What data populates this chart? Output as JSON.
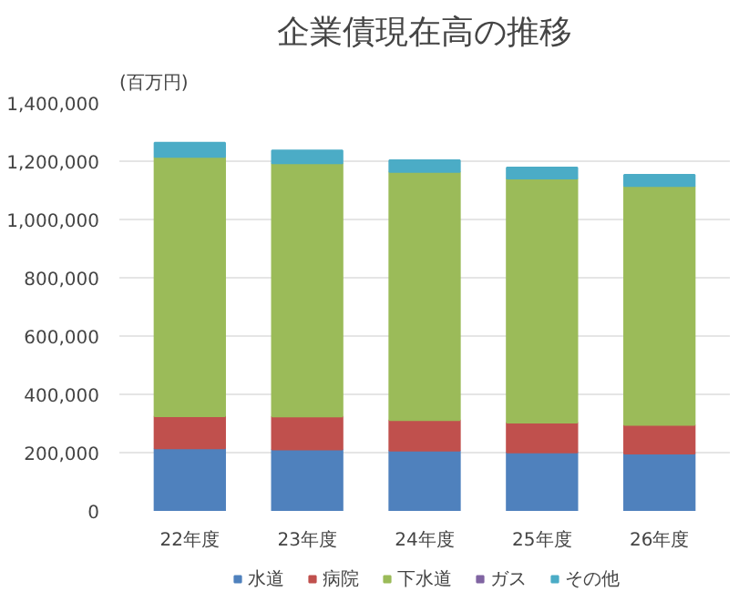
{
  "chart_data": {
    "type": "bar",
    "stacked": true,
    "title": "企業債現在高の推移",
    "ylabel": "(百万円)",
    "categories": [
      "22年度",
      "23年度",
      "24年度",
      "25年度",
      "26年度"
    ],
    "series": [
      {
        "name": "水道",
        "color": "#4f81bd",
        "values": [
          215000,
          211000,
          207000,
          201000,
          197000
        ]
      },
      {
        "name": "病院",
        "color": "#c0504d",
        "values": [
          110000,
          113000,
          105000,
          102000,
          98000
        ]
      },
      {
        "name": "下水道",
        "color": "#9bbb59",
        "values": [
          890000,
          869000,
          851000,
          838000,
          820000
        ]
      },
      {
        "name": "ガス",
        "color": "#8064a2",
        "values": [
          null,
          null,
          null,
          null,
          null
        ]
      },
      {
        "name": "その他",
        "color": "#4bacc6",
        "values": [
          48000,
          44000,
          40000,
          37000,
          38000
        ]
      }
    ],
    "ylim": [
      0,
      1400000
    ],
    "yticks": [
      0,
      {
        "value": 200000,
        "label": "200,000"
      },
      {
        "value": 400000,
        "label": "400,000"
      },
      {
        "value": 600000,
        "label": "600,000"
      },
      {
        "value": 800000,
        "label": "800,000"
      },
      {
        "value": 1000000,
        "label": "1,000,000"
      },
      {
        "value": 1200000,
        "label": "1,200,000"
      },
      {
        "value": 1400000,
        "label": "1,400,000"
      }
    ],
    "grid": "y",
    "legend": "bottom"
  }
}
